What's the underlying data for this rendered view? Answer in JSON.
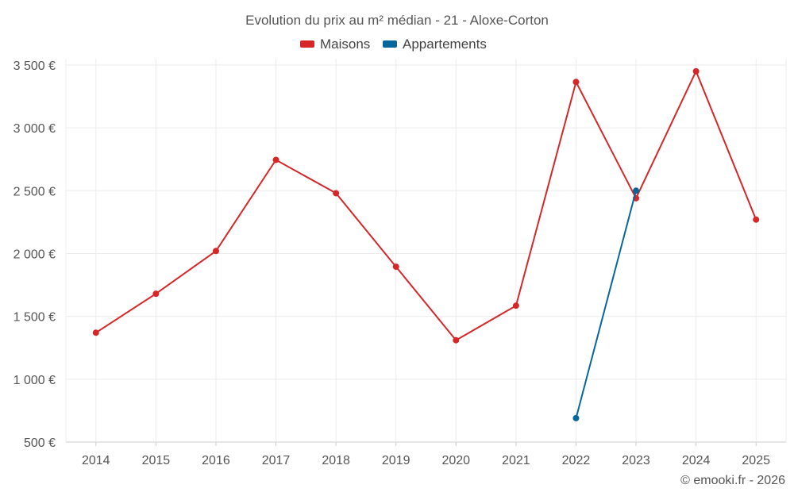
{
  "title": "Evolution du prix au m² médian - 21 - Aloxe-Corton",
  "credit": "© emooki.fr - 2026",
  "colors": {
    "maisons": "#d62728",
    "appartements": "#08679a"
  },
  "chart_data": {
    "type": "line",
    "title": "Evolution du prix au m² médian - 21 - Aloxe-Corton",
    "x": [
      "2014",
      "2015",
      "2016",
      "2017",
      "2018",
      "2019",
      "2020",
      "2021",
      "2022",
      "2023",
      "2024",
      "2025"
    ],
    "y_ticks": [
      "500 €",
      "1 000 €",
      "1 500 €",
      "2 000 €",
      "2 500 €",
      "3 000 €",
      "3 500 €"
    ],
    "ylim": [
      500,
      3550
    ],
    "grid": true,
    "legend_position": "top-center",
    "series": [
      {
        "name": "Maisons",
        "color": "#d62728",
        "values": [
          1370,
          1680,
          2020,
          2745,
          2480,
          1895,
          1310,
          1585,
          3365,
          2440,
          3450,
          2270
        ]
      },
      {
        "name": "Appartements",
        "color": "#08679a",
        "values": [
          null,
          null,
          null,
          null,
          null,
          null,
          null,
          null,
          690,
          2500,
          null,
          null
        ]
      }
    ]
  }
}
